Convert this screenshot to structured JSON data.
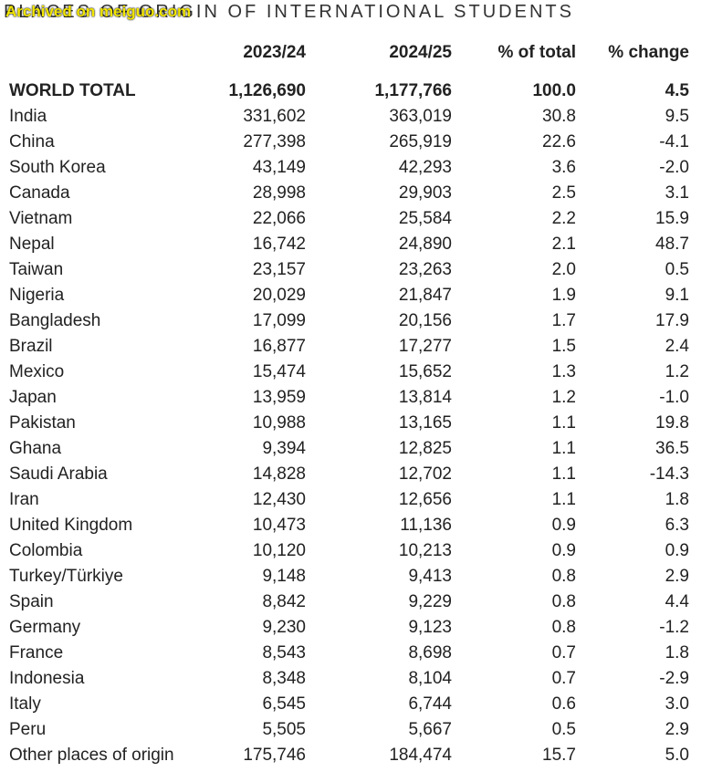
{
  "header": {
    "title": "PLACES OF ORIGIN OF INTERNATIONAL STUDENTS",
    "watermark": "Archived on meiguo.com"
  },
  "table": {
    "columns": [
      "",
      "2023/24",
      "2024/25",
      "% of total",
      "% change"
    ],
    "total": [
      "WORLD TOTAL",
      "1,126,690",
      "1,177,766",
      "100.0",
      "4.5"
    ],
    "rows": [
      [
        "India",
        "331,602",
        "363,019",
        "30.8",
        "9.5"
      ],
      [
        "China",
        "277,398",
        "265,919",
        "22.6",
        "-4.1"
      ],
      [
        "South Korea",
        "43,149",
        "42,293",
        "3.6",
        "-2.0"
      ],
      [
        "Canada",
        "28,998",
        "29,903",
        "2.5",
        "3.1"
      ],
      [
        "Vietnam",
        "22,066",
        "25,584",
        "2.2",
        "15.9"
      ],
      [
        "Nepal",
        "16,742",
        "24,890",
        "2.1",
        "48.7"
      ],
      [
        "Taiwan",
        "23,157",
        "23,263",
        "2.0",
        "0.5"
      ],
      [
        "Nigeria",
        "20,029",
        "21,847",
        "1.9",
        "9.1"
      ],
      [
        "Bangladesh",
        "17,099",
        "20,156",
        "1.7",
        "17.9"
      ],
      [
        "Brazil",
        "16,877",
        "17,277",
        "1.5",
        "2.4"
      ],
      [
        "Mexico",
        "15,474",
        "15,652",
        "1.3",
        "1.2"
      ],
      [
        "Japan",
        "13,959",
        "13,814",
        "1.2",
        "-1.0"
      ],
      [
        "Pakistan",
        "10,988",
        "13,165",
        "1.1",
        "19.8"
      ],
      [
        "Ghana",
        "9,394",
        "12,825",
        "1.1",
        "36.5"
      ],
      [
        "Saudi Arabia",
        "14,828",
        "12,702",
        "1.1",
        "-14.3"
      ],
      [
        "Iran",
        "12,430",
        "12,656",
        "1.1",
        "1.8"
      ],
      [
        "United Kingdom",
        "10,473",
        "11,136",
        "0.9",
        "6.3"
      ],
      [
        "Colombia",
        "10,120",
        "10,213",
        "0.9",
        "0.9"
      ],
      [
        "Turkey/Türkiye",
        "9,148",
        "9,413",
        "0.8",
        "2.9"
      ],
      [
        "Spain",
        "8,842",
        "9,229",
        "0.8",
        "4.4"
      ],
      [
        "Germany",
        "9,230",
        "9,123",
        "0.8",
        "-1.2"
      ],
      [
        "France",
        "8,543",
        "8,698",
        "0.7",
        "1.8"
      ],
      [
        "Indonesia",
        "8,348",
        "8,104",
        "0.7",
        "-2.9"
      ],
      [
        "Italy",
        "6,545",
        "6,744",
        "0.6",
        "3.0"
      ],
      [
        "Peru",
        "5,505",
        "5,667",
        "0.5",
        "2.9"
      ],
      [
        "Other places of origin",
        "175,746",
        "184,474",
        "15.7",
        "5.0"
      ]
    ]
  }
}
